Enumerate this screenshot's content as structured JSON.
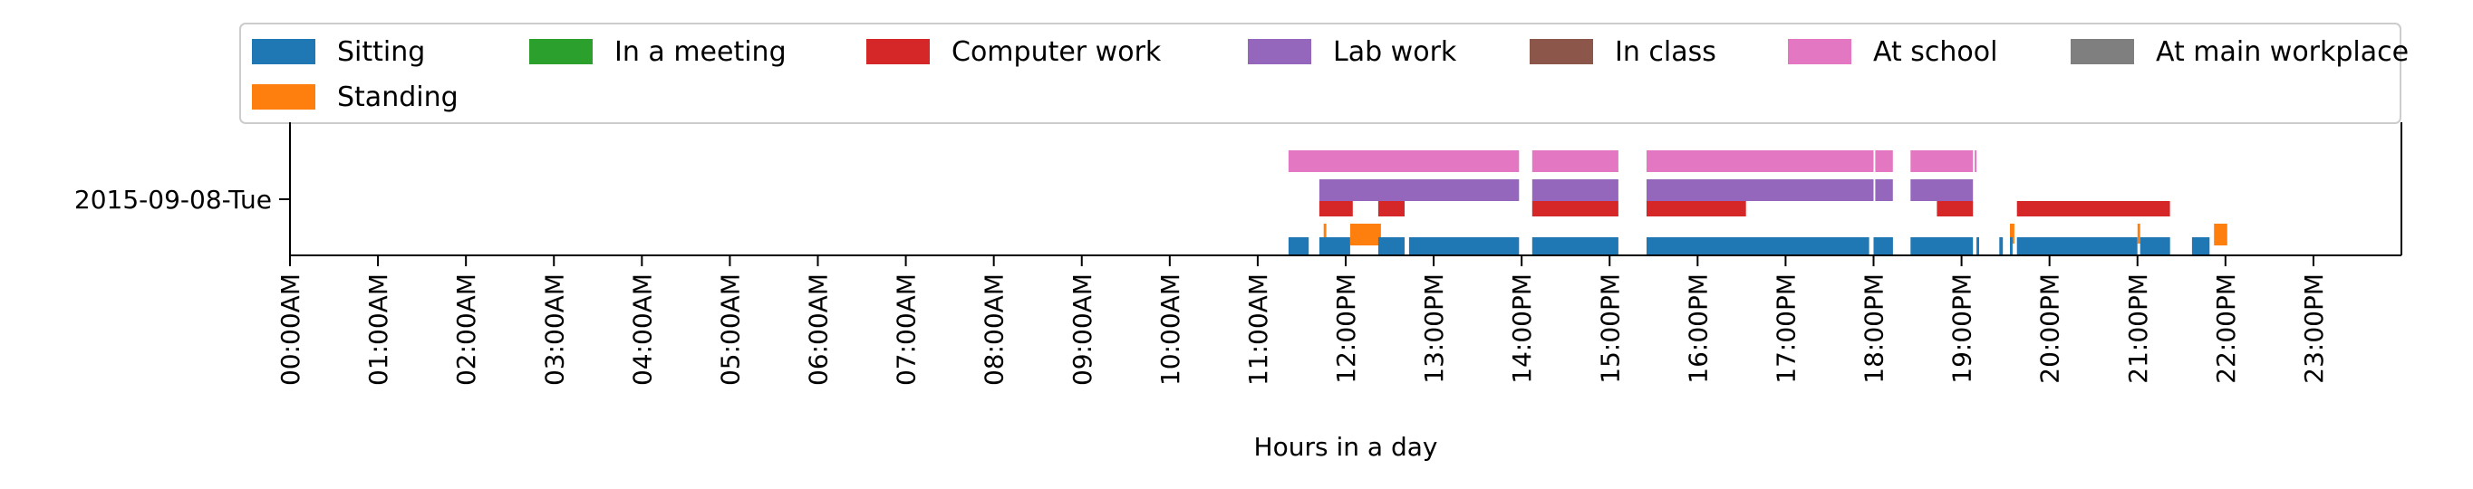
{
  "chart_data": {
    "type": "timeline",
    "xlabel": "Hours in a day",
    "ylabel": "",
    "y_categories": [
      "2015-09-08-Tue"
    ],
    "xlim_hours": [
      0,
      24
    ],
    "x_ticks": [
      "00:00AM",
      "01:00AM",
      "02:00AM",
      "03:00AM",
      "04:00AM",
      "05:00AM",
      "06:00AM",
      "07:00AM",
      "08:00AM",
      "09:00AM",
      "10:00AM",
      "11:00AM",
      "12:00PM",
      "13:00PM",
      "14:00PM",
      "15:00PM",
      "16:00PM",
      "17:00PM",
      "18:00PM",
      "19:00PM",
      "20:00PM",
      "21:00PM",
      "22:00PM",
      "23:00PM"
    ],
    "legend_position": "top",
    "legend_entries": [
      {
        "name": "Sitting",
        "color": "#1f77b4"
      },
      {
        "name": "In a meeting",
        "color": "#2ca02c"
      },
      {
        "name": "Computer work",
        "color": "#d62728"
      },
      {
        "name": "Lab work",
        "color": "#9467bd"
      },
      {
        "name": "In class",
        "color": "#8c564b"
      },
      {
        "name": "At school",
        "color": "#e377c2"
      },
      {
        "name": "At main workplace",
        "color": "#7f7f7f"
      },
      {
        "name": "Standing",
        "color": "#ff7f0e"
      }
    ],
    "series": [
      {
        "name": "At school",
        "color": "#e377c2",
        "intervals": [
          [
            11.35,
            13.97
          ],
          [
            14.12,
            15.1
          ],
          [
            15.42,
            18.0
          ],
          [
            18.02,
            18.22
          ],
          [
            18.42,
            19.13
          ],
          [
            19.15,
            19.17
          ]
        ]
      },
      {
        "name": "Lab work",
        "color": "#9467bd",
        "intervals": [
          [
            11.7,
            13.97
          ],
          [
            14.12,
            15.1
          ],
          [
            15.42,
            18.0
          ],
          [
            18.02,
            18.22
          ],
          [
            18.42,
            19.13
          ]
        ]
      },
      {
        "name": "Computer work",
        "color": "#d62728",
        "intervals": [
          [
            11.7,
            12.08
          ],
          [
            12.37,
            12.67
          ],
          [
            14.12,
            15.1
          ],
          [
            15.42,
            16.55
          ],
          [
            18.72,
            19.13
          ],
          [
            19.63,
            21.37
          ]
        ]
      },
      {
        "name": "Standing",
        "color": "#ff7f0e",
        "intervals": [
          [
            11.75,
            11.78
          ],
          [
            12.05,
            12.4
          ],
          [
            19.55,
            19.6
          ],
          [
            21.0,
            21.03
          ],
          [
            21.87,
            22.02
          ]
        ]
      },
      {
        "name": "Sitting",
        "color": "#1f77b4",
        "intervals": [
          [
            11.35,
            11.58
          ],
          [
            11.7,
            12.05
          ],
          [
            12.37,
            12.67
          ],
          [
            12.72,
            13.97
          ],
          [
            14.12,
            15.1
          ],
          [
            15.42,
            17.95
          ],
          [
            18.0,
            18.22
          ],
          [
            18.42,
            19.13
          ],
          [
            19.17,
            19.2
          ],
          [
            19.43,
            19.47
          ],
          [
            19.55,
            19.58
          ],
          [
            19.63,
            21.0
          ],
          [
            21.03,
            21.37
          ],
          [
            21.62,
            21.82
          ]
        ]
      }
    ]
  }
}
